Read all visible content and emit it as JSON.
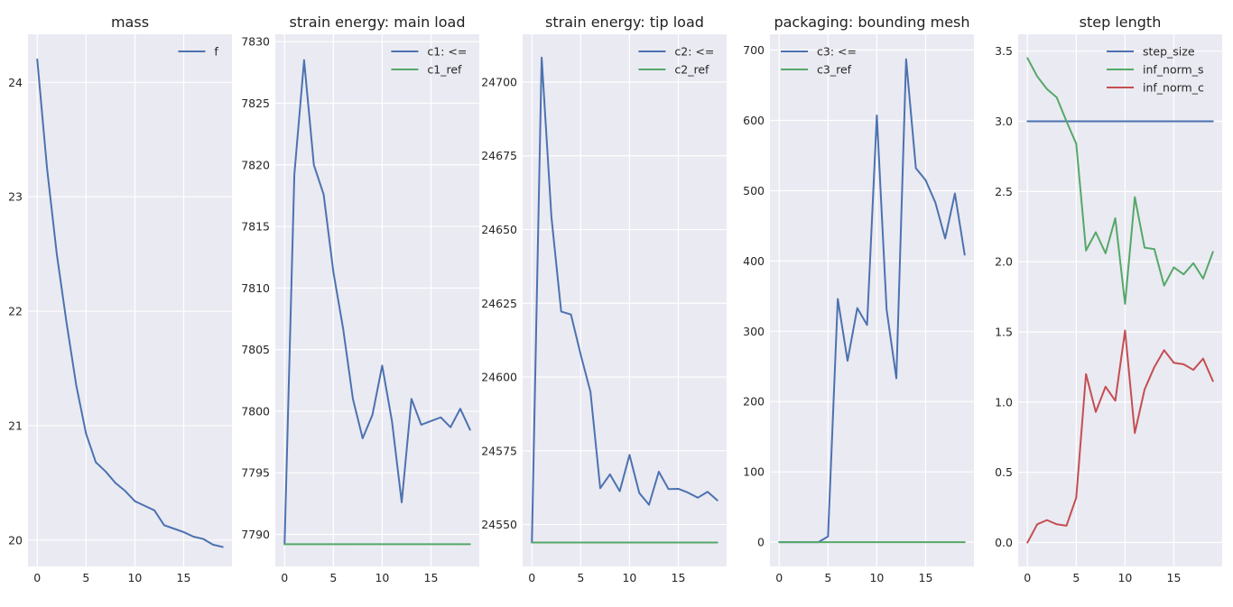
{
  "figure": {
    "colors": {
      "blue": "#4c72b0",
      "green": "#55a868",
      "red": "#c44e52",
      "axes_bg": "#eaeaf2",
      "grid": "#ffffff"
    },
    "grid": true
  },
  "chart_data": [
    {
      "type": "line",
      "title": "mass",
      "xlabel": "",
      "ylabel": "",
      "xlim": [
        -0.95,
        19.95
      ],
      "ylim": [
        19.77,
        24.42
      ],
      "xticks": [
        0,
        5,
        10,
        15
      ],
      "yticks": [
        20,
        21,
        22,
        23,
        24
      ],
      "legend_loc": "upper right",
      "x": [
        0,
        1,
        2,
        3,
        4,
        5,
        6,
        7,
        8,
        9,
        10,
        11,
        12,
        13,
        14,
        15,
        16,
        17,
        18,
        19
      ],
      "series": [
        {
          "name": "f",
          "color": "#4c72b0",
          "values": [
            24.2,
            23.25,
            22.5,
            21.9,
            21.35,
            20.93,
            20.68,
            20.6,
            20.5,
            20.43,
            20.34,
            20.3,
            20.26,
            20.13,
            20.1,
            20.07,
            20.03,
            20.01,
            19.96,
            19.94
          ]
        }
      ]
    },
    {
      "type": "line",
      "title": "strain energy: main load",
      "xlabel": "",
      "ylabel": "",
      "xlim": [
        -0.95,
        19.95
      ],
      "ylim": [
        7787.4,
        7830.6
      ],
      "xticks": [
        0,
        5,
        10,
        15
      ],
      "yticks": [
        7790,
        7795,
        7800,
        7805,
        7810,
        7815,
        7820,
        7825,
        7830
      ],
      "legend_loc": "upper right",
      "x": [
        0,
        1,
        2,
        3,
        4,
        5,
        6,
        7,
        8,
        9,
        10,
        11,
        12,
        13,
        14,
        15,
        16,
        17,
        18,
        19
      ],
      "series": [
        {
          "name": "c1: <=",
          "color": "#4c72b0",
          "values": [
            7789.2,
            7819.2,
            7828.5,
            7820.0,
            7817.6,
            7811.3,
            7806.7,
            7801.0,
            7797.8,
            7799.7,
            7803.7,
            7799.2,
            7792.6,
            7801.0,
            7798.9,
            7799.2,
            7799.5,
            7798.7,
            7800.2,
            7798.5
          ]
        },
        {
          "name": "c1_ref",
          "color": "#55a868",
          "values": [
            7789.2,
            7789.2,
            7789.2,
            7789.2,
            7789.2,
            7789.2,
            7789.2,
            7789.2,
            7789.2,
            7789.2,
            7789.2,
            7789.2,
            7789.2,
            7789.2,
            7789.2,
            7789.2,
            7789.2,
            7789.2,
            7789.2,
            7789.2
          ]
        }
      ]
    },
    {
      "type": "line",
      "title": "strain energy: tip load",
      "xlabel": "",
      "ylabel": "",
      "xlim": [
        -0.95,
        19.95
      ],
      "ylim": [
        24535.8,
        24716.2
      ],
      "xticks": [
        0,
        5,
        10,
        15
      ],
      "yticks": [
        24550,
        24575,
        24600,
        24625,
        24650,
        24675,
        24700
      ],
      "legend_loc": "upper right",
      "x": [
        0,
        1,
        2,
        3,
        4,
        5,
        6,
        7,
        8,
        9,
        10,
        11,
        12,
        13,
        14,
        15,
        16,
        17,
        18,
        19
      ],
      "series": [
        {
          "name": "c2: <=",
          "color": "#4c72b0",
          "values": [
            24543.9,
            24708.3,
            24654.3,
            24622.2,
            24621.2,
            24607.6,
            24595.0,
            24562.3,
            24567.0,
            24561.3,
            24573.6,
            24560.7,
            24556.7,
            24567.9,
            24562.0,
            24562.1,
            24560.8,
            24559.1,
            24561.1,
            24558.2
          ]
        },
        {
          "name": "c2_ref",
          "color": "#55a868",
          "values": [
            24543.9,
            24543.9,
            24543.9,
            24543.9,
            24543.9,
            24543.9,
            24543.9,
            24543.9,
            24543.9,
            24543.9,
            24543.9,
            24543.9,
            24543.9,
            24543.9,
            24543.9,
            24543.9,
            24543.9,
            24543.9,
            24543.9,
            24543.9
          ]
        }
      ]
    },
    {
      "type": "line",
      "title": "packaging: bounding mesh",
      "xlabel": "",
      "ylabel": "",
      "xlim": [
        -0.95,
        19.95
      ],
      "ylim": [
        -34.5,
        722.5
      ],
      "xticks": [
        0,
        5,
        10,
        15
      ],
      "yticks": [
        0,
        100,
        200,
        300,
        400,
        500,
        600,
        700
      ],
      "legend_loc": "upper left",
      "x": [
        0,
        1,
        2,
        3,
        4,
        5,
        6,
        7,
        8,
        9,
        10,
        11,
        12,
        13,
        14,
        15,
        16,
        17,
        18,
        19
      ],
      "series": [
        {
          "name": "c3: <=",
          "color": "#4c72b0",
          "values": [
            0,
            0,
            0,
            0,
            0,
            8,
            346,
            258,
            333,
            309,
            607,
            331,
            233,
            687,
            532,
            515,
            483,
            432,
            496,
            409
          ]
        },
        {
          "name": "c3_ref",
          "color": "#55a868",
          "values": [
            0,
            0,
            0,
            0,
            0,
            0,
            0,
            0,
            0,
            0,
            0,
            0,
            0,
            0,
            0,
            0,
            0,
            0,
            0,
            0
          ]
        }
      ]
    },
    {
      "type": "line",
      "title": "step length",
      "xlabel": "",
      "ylabel": "",
      "xlim": [
        -0.95,
        19.95
      ],
      "ylim": [
        -0.17,
        3.62
      ],
      "xticks": [
        0,
        5,
        10,
        15
      ],
      "yticks": [
        0.0,
        0.5,
        1.0,
        1.5,
        2.0,
        2.5,
        3.0,
        3.5
      ],
      "legend_loc": "upper right",
      "x": [
        0,
        1,
        2,
        3,
        4,
        5,
        6,
        7,
        8,
        9,
        10,
        11,
        12,
        13,
        14,
        15,
        16,
        17,
        18,
        19
      ],
      "series": [
        {
          "name": "step_size",
          "color": "#4c72b0",
          "values": [
            3.0,
            3.0,
            3.0,
            3.0,
            3.0,
            3.0,
            3.0,
            3.0,
            3.0,
            3.0,
            3.0,
            3.0,
            3.0,
            3.0,
            3.0,
            3.0,
            3.0,
            3.0,
            3.0,
            3.0
          ]
        },
        {
          "name": "inf_norm_s",
          "color": "#55a868",
          "values": [
            3.45,
            3.32,
            3.23,
            3.17,
            3.0,
            2.84,
            2.08,
            2.21,
            2.06,
            2.31,
            1.7,
            2.46,
            2.1,
            2.09,
            1.83,
            1.96,
            1.91,
            1.99,
            1.88,
            2.07
          ]
        },
        {
          "name": "inf_norm_c",
          "color": "#c44e52",
          "values": [
            0.0,
            0.13,
            0.16,
            0.13,
            0.12,
            0.32,
            1.2,
            0.93,
            1.11,
            1.01,
            1.51,
            0.78,
            1.09,
            1.25,
            1.37,
            1.28,
            1.27,
            1.23,
            1.31,
            1.15
          ]
        }
      ]
    }
  ]
}
